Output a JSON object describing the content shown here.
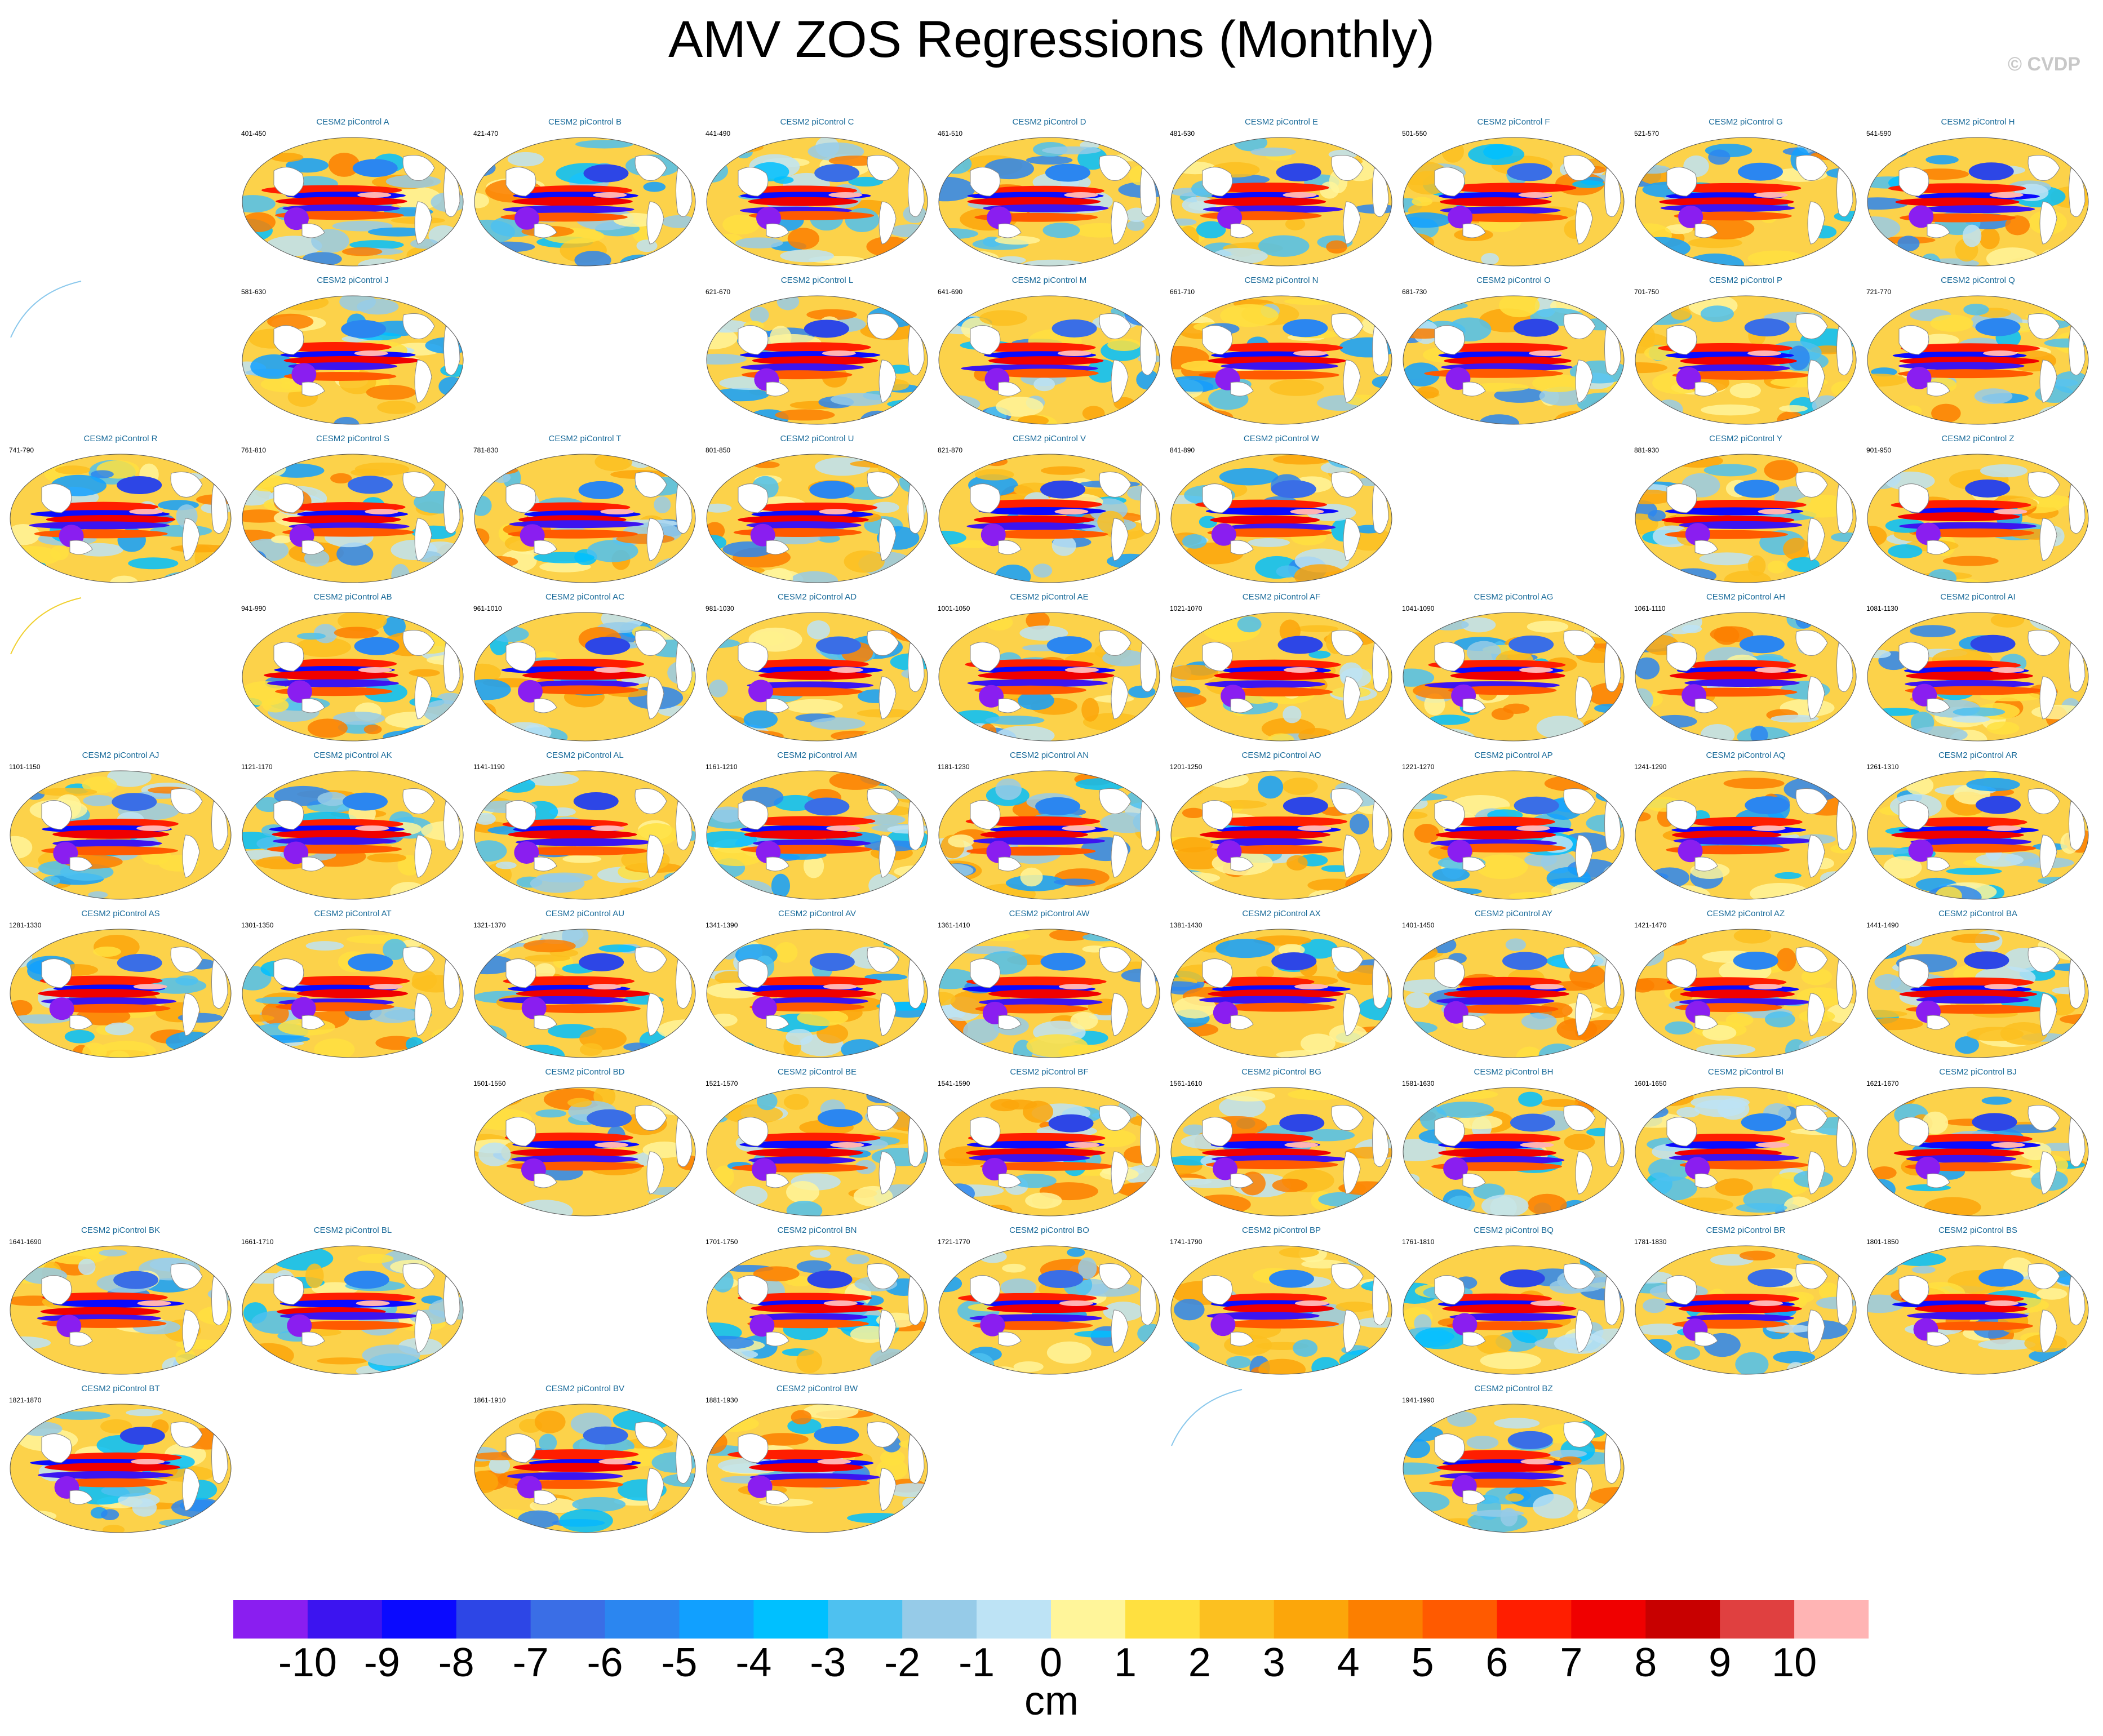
{
  "title": "AMV ZOS Regressions (Monthly)",
  "credit": "© CVDP",
  "unit": "cm",
  "chart_data": {
    "type": "heatmap",
    "title": "AMV ZOS Regressions (Monthly)",
    "colorbar": {
      "labels": [
        "-10",
        "-9",
        "-8",
        "-7",
        "-6",
        "-5",
        "-4",
        "-3",
        "-2",
        "-1",
        "0",
        "1",
        "2",
        "3",
        "4",
        "5",
        "6",
        "7",
        "8",
        "9",
        "10"
      ],
      "colors": [
        "#8a1ef0",
        "#3c14f0",
        "#0a0aff",
        "#2d46e6",
        "#3a6ee6",
        "#2b86f0",
        "#11a0ff",
        "#00c0ff",
        "#4ec1f0",
        "#96cbe8",
        "#bde3f5",
        "#fff59a",
        "#ffe040",
        "#fcc020",
        "#fca60a",
        "#fc7f00",
        "#ff5a00",
        "#ff1e00",
        "#f00000",
        "#c80000",
        "#e04040",
        "#ffb4b4"
      ],
      "unit": "cm"
    },
    "panels": [
      {
        "row": 0,
        "col": 1,
        "title": "CESM2 piControl A",
        "years": "401-450"
      },
      {
        "row": 0,
        "col": 2,
        "title": "CESM2 piControl B",
        "years": "421-470"
      },
      {
        "row": 0,
        "col": 3,
        "title": "CESM2 piControl C",
        "years": "441-490"
      },
      {
        "row": 0,
        "col": 4,
        "title": "CESM2 piControl D",
        "years": "461-510"
      },
      {
        "row": 0,
        "col": 5,
        "title": "CESM2 piControl E",
        "years": "481-530"
      },
      {
        "row": 0,
        "col": 6,
        "title": "CESM2 piControl F",
        "years": "501-550"
      },
      {
        "row": 0,
        "col": 7,
        "title": "CESM2 piControl G",
        "years": "521-570"
      },
      {
        "row": 0,
        "col": 8,
        "title": "CESM2 piControl H",
        "years": "541-590"
      },
      {
        "row": 1,
        "col": 0,
        "title": "",
        "years": "",
        "fragment": "arc-blue"
      },
      {
        "row": 1,
        "col": 1,
        "title": "CESM2 piControl J",
        "years": "581-630"
      },
      {
        "row": 1,
        "col": 3,
        "title": "CESM2 piControl L",
        "years": "621-670"
      },
      {
        "row": 1,
        "col": 4,
        "title": "CESM2 piControl M",
        "years": "641-690"
      },
      {
        "row": 1,
        "col": 5,
        "title": "CESM2 piControl N",
        "years": "661-710"
      },
      {
        "row": 1,
        "col": 6,
        "title": "CESM2 piControl O",
        "years": "681-730"
      },
      {
        "row": 1,
        "col": 7,
        "title": "CESM2 piControl P",
        "years": "701-750"
      },
      {
        "row": 1,
        "col": 8,
        "title": "CESM2 piControl Q",
        "years": "721-770"
      },
      {
        "row": 2,
        "col": 0,
        "title": "CESM2 piControl R",
        "years": "741-790"
      },
      {
        "row": 2,
        "col": 1,
        "title": "CESM2 piControl S",
        "years": "761-810"
      },
      {
        "row": 2,
        "col": 2,
        "title": "CESM2 piControl T",
        "years": "781-830"
      },
      {
        "row": 2,
        "col": 3,
        "title": "CESM2 piControl U",
        "years": "801-850"
      },
      {
        "row": 2,
        "col": 4,
        "title": "CESM2 piControl V",
        "years": "821-870"
      },
      {
        "row": 2,
        "col": 5,
        "title": "CESM2 piControl W",
        "years": "841-890"
      },
      {
        "row": 2,
        "col": 7,
        "title": "CESM2 piControl Y",
        "years": "881-930"
      },
      {
        "row": 2,
        "col": 8,
        "title": "CESM2 piControl Z",
        "years": "901-950"
      },
      {
        "row": 3,
        "col": 0,
        "title": "",
        "years": "",
        "fragment": "arc-yellow"
      },
      {
        "row": 3,
        "col": 1,
        "title": "CESM2 piControl AB",
        "years": "941-990"
      },
      {
        "row": 3,
        "col": 2,
        "title": "CESM2 piControl AC",
        "years": "961-1010"
      },
      {
        "row": 3,
        "col": 3,
        "title": "CESM2 piControl AD",
        "years": "981-1030"
      },
      {
        "row": 3,
        "col": 4,
        "title": "CESM2 piControl AE",
        "years": "1001-1050"
      },
      {
        "row": 3,
        "col": 5,
        "title": "CESM2 piControl AF",
        "years": "1021-1070"
      },
      {
        "row": 3,
        "col": 6,
        "title": "CESM2 piControl AG",
        "years": "1041-1090"
      },
      {
        "row": 3,
        "col": 7,
        "title": "CESM2 piControl AH",
        "years": "1061-1110"
      },
      {
        "row": 3,
        "col": 8,
        "title": "CESM2 piControl AI",
        "years": "1081-1130"
      },
      {
        "row": 4,
        "col": 0,
        "title": "CESM2 piControl AJ",
        "years": "1101-1150"
      },
      {
        "row": 4,
        "col": 1,
        "title": "CESM2 piControl AK",
        "years": "1121-1170"
      },
      {
        "row": 4,
        "col": 2,
        "title": "CESM2 piControl AL",
        "years": "1141-1190"
      },
      {
        "row": 4,
        "col": 3,
        "title": "CESM2 piControl AM",
        "years": "1161-1210"
      },
      {
        "row": 4,
        "col": 4,
        "title": "CESM2 piControl AN",
        "years": "1181-1230"
      },
      {
        "row": 4,
        "col": 5,
        "title": "CESM2 piControl AO",
        "years": "1201-1250"
      },
      {
        "row": 4,
        "col": 6,
        "title": "CESM2 piControl AP",
        "years": "1221-1270"
      },
      {
        "row": 4,
        "col": 7,
        "title": "CESM2 piControl AQ",
        "years": "1241-1290"
      },
      {
        "row": 4,
        "col": 8,
        "title": "CESM2 piControl AR",
        "years": "1261-1310"
      },
      {
        "row": 5,
        "col": 0,
        "title": "CESM2 piControl AS",
        "years": "1281-1330"
      },
      {
        "row": 5,
        "col": 1,
        "title": "CESM2 piControl AT",
        "years": "1301-1350"
      },
      {
        "row": 5,
        "col": 2,
        "title": "CESM2 piControl AU",
        "years": "1321-1370"
      },
      {
        "row": 5,
        "col": 3,
        "title": "CESM2 piControl AV",
        "years": "1341-1390"
      },
      {
        "row": 5,
        "col": 4,
        "title": "CESM2 piControl AW",
        "years": "1361-1410"
      },
      {
        "row": 5,
        "col": 5,
        "title": "CESM2 piControl AX",
        "years": "1381-1430"
      },
      {
        "row": 5,
        "col": 6,
        "title": "CESM2 piControl AY",
        "years": "1401-1450"
      },
      {
        "row": 5,
        "col": 7,
        "title": "CESM2 piControl AZ",
        "years": "1421-1470"
      },
      {
        "row": 5,
        "col": 8,
        "title": "CESM2 piControl BA",
        "years": "1441-1490"
      },
      {
        "row": 6,
        "col": 2,
        "title": "CESM2 piControl BD",
        "years": "1501-1550"
      },
      {
        "row": 6,
        "col": 3,
        "title": "CESM2 piControl BE",
        "years": "1521-1570"
      },
      {
        "row": 6,
        "col": 4,
        "title": "CESM2 piControl BF",
        "years": "1541-1590"
      },
      {
        "row": 6,
        "col": 5,
        "title": "CESM2 piControl BG",
        "years": "1561-1610"
      },
      {
        "row": 6,
        "col": 6,
        "title": "CESM2 piControl BH",
        "years": "1581-1630"
      },
      {
        "row": 6,
        "col": 7,
        "title": "CESM2 piControl BI",
        "years": "1601-1650"
      },
      {
        "row": 6,
        "col": 8,
        "title": "CESM2 piControl BJ",
        "years": "1621-1670"
      },
      {
        "row": 7,
        "col": 0,
        "title": "CESM2 piControl BK",
        "years": "1641-1690"
      },
      {
        "row": 7,
        "col": 1,
        "title": "CESM2 piControl BL",
        "years": "1661-1710"
      },
      {
        "row": 7,
        "col": 3,
        "title": "CESM2 piControl BN",
        "years": "1701-1750"
      },
      {
        "row": 7,
        "col": 4,
        "title": "CESM2 piControl BO",
        "years": "1721-1770"
      },
      {
        "row": 7,
        "col": 5,
        "title": "CESM2 piControl BP",
        "years": "1741-1790"
      },
      {
        "row": 7,
        "col": 6,
        "title": "CESM2 piControl BQ",
        "years": "1761-1810"
      },
      {
        "row": 7,
        "col": 7,
        "title": "CESM2 piControl BR",
        "years": "1781-1830"
      },
      {
        "row": 7,
        "col": 8,
        "title": "CESM2 piControl BS",
        "years": "1801-1850"
      },
      {
        "row": 8,
        "col": 0,
        "title": "CESM2 piControl BT",
        "years": "1821-1870"
      },
      {
        "row": 8,
        "col": 2,
        "title": "CESM2 piControl BV",
        "years": "1861-1910"
      },
      {
        "row": 8,
        "col": 3,
        "title": "CESM2 piControl BW",
        "years": "1881-1930"
      },
      {
        "row": 8,
        "col": 5,
        "title": "",
        "years": "",
        "fragment": "arc-blue"
      },
      {
        "row": 8,
        "col": 6,
        "title": "CESM2 piControl BZ",
        "years": "1941-1990"
      }
    ]
  }
}
